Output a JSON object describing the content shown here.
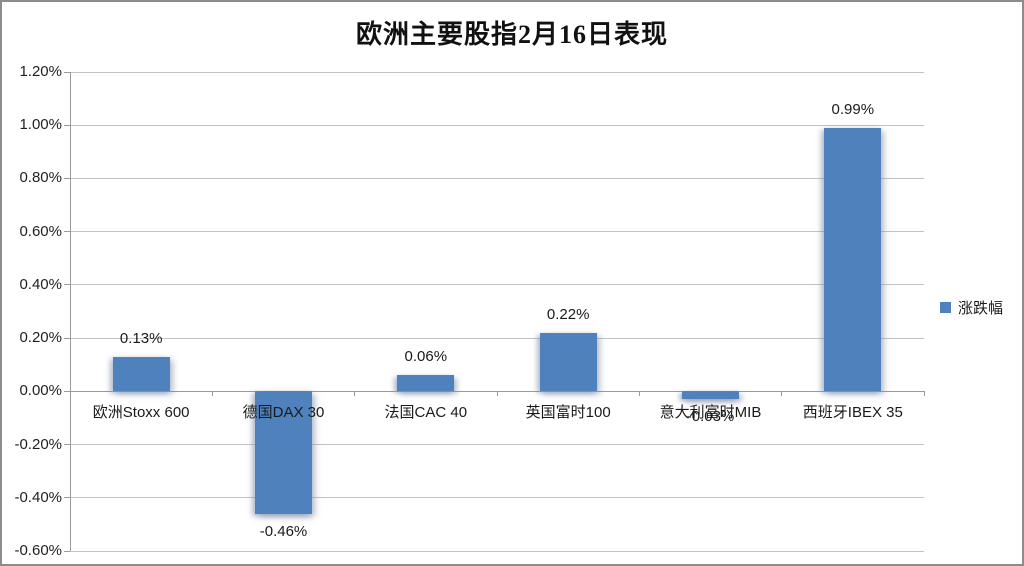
{
  "title": "欧洲主要股指2月16日表现",
  "legend": {
    "label": "涨跌幅"
  },
  "colors": {
    "bar": "#4f81bd",
    "gridline": "#c3c3c3",
    "axis": "#9a9a9a",
    "text": "#1a1a1a"
  },
  "chart_data": {
    "type": "bar",
    "title": "欧洲主要股指2月16日表现",
    "categories": [
      "欧洲Stoxx 600",
      "德国DAX 30",
      "法国CAC 40",
      "英国富时100",
      "意大利富时MIB",
      "西班牙IBEX 35"
    ],
    "series": [
      {
        "name": "涨跌幅",
        "values": [
          0.13,
          -0.46,
          0.06,
          0.22,
          -0.03,
          0.99
        ]
      }
    ],
    "data_labels": [
      "0.13%",
      "-0.46%",
      "0.06%",
      "0.22%",
      "-0.03%",
      "0.99%"
    ],
    "xlabel": "",
    "ylabel": "",
    "ylim": [
      -0.6,
      1.2
    ],
    "yticks": [
      {
        "value": 1.2,
        "label": "1.20%"
      },
      {
        "value": 1.0,
        "label": "1.00%"
      },
      {
        "value": 0.8,
        "label": "0.80%"
      },
      {
        "value": 0.6,
        "label": "0.60%"
      },
      {
        "value": 0.4,
        "label": "0.40%"
      },
      {
        "value": 0.2,
        "label": "0.20%"
      },
      {
        "value": 0.0,
        "label": "0.00%"
      },
      {
        "value": -0.2,
        "label": "-0.20%"
      },
      {
        "value": -0.4,
        "label": "-0.40%"
      },
      {
        "value": -0.6,
        "label": "-0.60%"
      }
    ],
    "grid": true,
    "legend_position": "right"
  }
}
